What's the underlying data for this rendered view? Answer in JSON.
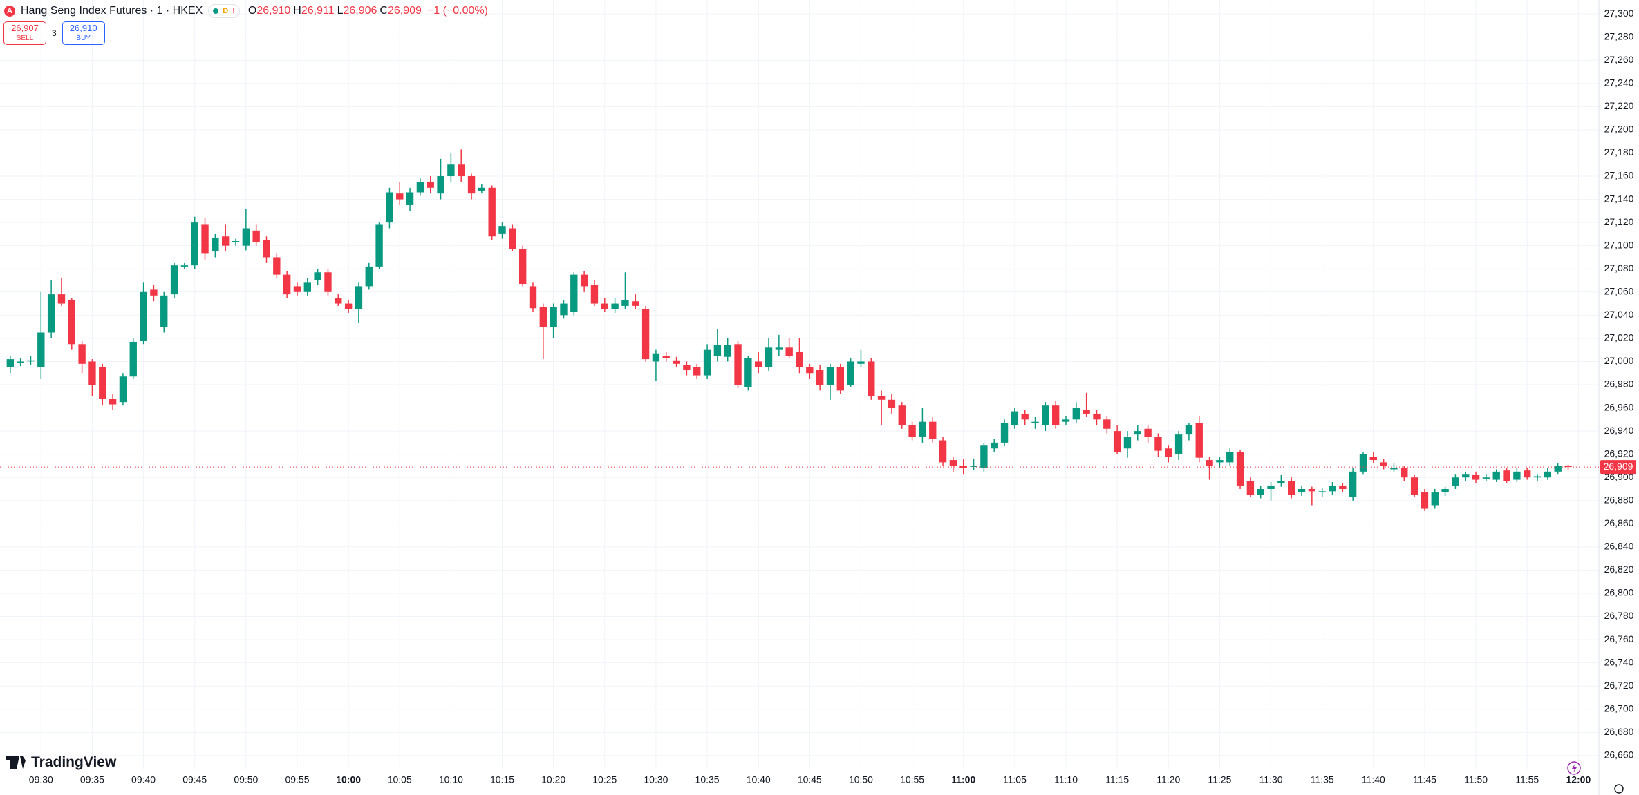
{
  "header": {
    "symbol": "Hang Seng Index Futures · 1 · HKEX",
    "badge_d": "D",
    "badge_alert": "!",
    "ohlc": [
      {
        "label": "O",
        "value": "26,910"
      },
      {
        "label": "H",
        "value": "26,911"
      },
      {
        "label": "L",
        "value": "26,906"
      },
      {
        "label": "C",
        "value": "26,909"
      }
    ],
    "change": "−1 (−0.00%)"
  },
  "trade": {
    "sell_price": "26,907",
    "sell": "SELL",
    "spread": "3",
    "buy_price": "26,910",
    "buy": "BUY"
  },
  "logo": "TradingView",
  "chart_data": {
    "type": "candlestick",
    "x": [
      "09:27",
      "09:28",
      "09:29",
      "09:30",
      "09:31",
      "09:32",
      "09:33",
      "09:34",
      "09:35",
      "09:36",
      "09:37",
      "09:38",
      "09:39",
      "09:40",
      "09:41",
      "09:42",
      "09:43",
      "09:44",
      "09:45",
      "09:46",
      "09:47",
      "09:48",
      "09:49",
      "09:50",
      "09:51",
      "09:52",
      "09:53",
      "09:54",
      "09:55",
      "09:56",
      "09:57",
      "09:58",
      "09:59",
      "10:00",
      "10:01",
      "10:02",
      "10:03",
      "10:04",
      "10:05",
      "10:06",
      "10:07",
      "10:08",
      "10:09",
      "10:10",
      "10:11",
      "10:12",
      "10:13",
      "10:14",
      "10:15",
      "10:16",
      "10:17",
      "10:18",
      "10:19",
      "10:20",
      "10:21",
      "10:22",
      "10:23",
      "10:24",
      "10:25",
      "10:26",
      "10:27",
      "10:28",
      "10:29",
      "10:30",
      "10:31",
      "10:32",
      "10:33",
      "10:34",
      "10:35",
      "10:36",
      "10:37",
      "10:38",
      "10:39",
      "10:40",
      "10:41",
      "10:42",
      "10:43",
      "10:44",
      "10:45",
      "10:46",
      "10:47",
      "10:48",
      "10:49",
      "10:50",
      "10:51",
      "10:52",
      "10:53",
      "10:54",
      "10:55",
      "10:56",
      "10:57",
      "10:58",
      "10:59",
      "11:00",
      "11:01",
      "11:02",
      "11:03",
      "11:04",
      "11:05",
      "11:06",
      "11:07",
      "11:08",
      "11:09",
      "11:10",
      "11:11",
      "11:12",
      "11:13",
      "11:14",
      "11:15",
      "11:16",
      "11:17",
      "11:18",
      "11:19",
      "11:20",
      "11:21",
      "11:22",
      "11:23",
      "11:24",
      "11:25",
      "11:26",
      "11:27",
      "11:28",
      "11:29",
      "11:30",
      "11:31",
      "11:32",
      "11:33",
      "11:34",
      "11:35",
      "11:36",
      "11:37",
      "11:38",
      "11:39",
      "11:40",
      "11:41",
      "11:42",
      "11:43",
      "11:44",
      "11:45",
      "11:46",
      "11:47",
      "11:48",
      "11:49",
      "11:50",
      "11:51",
      "11:52",
      "11:53",
      "11:54",
      "11:55",
      "11:56",
      "11:57",
      "11:58",
      "11:59"
    ],
    "open": [
      26995,
      27000,
      27001,
      26995,
      27025,
      27058,
      27053,
      27015,
      27000,
      26995,
      26968,
      26965,
      26987,
      27018,
      27062,
      27030,
      27058,
      27082,
      27083,
      27118,
      27095,
      27108,
      27103,
      27100,
      27113,
      27105,
      27090,
      27075,
      27065,
      27060,
      27070,
      27077,
      27055,
      27050,
      27045,
      27065,
      27082,
      27120,
      27145,
      27135,
      27146,
      27155,
      27145,
      27160,
      27170,
      27160,
      27147,
      27150,
      27110,
      27115,
      27097,
      27065,
      27047,
      27030,
      27040,
      27043,
      27075,
      27066,
      27050,
      27045,
      27048,
      27052,
      27045,
      27000,
      27005,
      27001,
      26997,
      26995,
      26988,
      27005,
      27004,
      27015,
      26978,
      27000,
      26995,
      27010,
      27012,
      27008,
      26995,
      26993,
      26980,
      26995,
      26980,
      26998,
      27000,
      26970,
      26967,
      26962,
      26945,
      26935,
      26948,
      26932,
      26915,
      26910,
      26910,
      26908,
      26925,
      26930,
      26945,
      26955,
      26948,
      26945,
      26962,
      26948,
      26950,
      26958,
      26955,
      26950,
      26940,
      26925,
      26937,
      26942,
      26935,
      26925,
      26920,
      26937,
      26947,
      26915,
      26913,
      26913,
      26922,
      26897,
      26885,
      26890,
      26895,
      26897,
      26887,
      26890,
      26887,
      26888,
      26893,
      26883,
      26905,
      26918,
      26913,
      26907,
      26908,
      26900,
      26887,
      26876,
      26887,
      26893,
      26900,
      26902,
      26899,
      26898,
      26906,
      26898,
      26906,
      26900,
      26900,
      26905,
      26910
    ],
    "high": [
      27005,
      27003,
      27005,
      27060,
      27070,
      27072,
      27055,
      27018,
      27002,
      26998,
      26972,
      26990,
      27020,
      27068,
      27066,
      27060,
      27085,
      27085,
      27125,
      27124,
      27110,
      27118,
      27106,
      27132,
      27118,
      27108,
      27093,
      27078,
      27068,
      27072,
      27080,
      27080,
      27058,
      27053,
      27068,
      27085,
      27120,
      27150,
      27155,
      27150,
      27158,
      27160,
      27175,
      27180,
      27183,
      27162,
      27153,
      27152,
      27120,
      27118,
      27100,
      27068,
      27050,
      27050,
      27053,
      27077,
      27078,
      27070,
      27055,
      27055,
      27077,
      27058,
      27048,
      27010,
      27008,
      27004,
      27000,
      26998,
      27015,
      27028,
      27020,
      27018,
      27005,
      27008,
      27020,
      27023,
      27020,
      27020,
      26998,
      26997,
      26998,
      26998,
      27003,
      27010,
      27003,
      26975,
      26972,
      26965,
      26948,
      26960,
      26952,
      26935,
      26918,
      26916,
      26916,
      26930,
      26933,
      26950,
      26960,
      26958,
      26952,
      26965,
      26966,
      26953,
      26965,
      26973,
      26958,
      26953,
      26945,
      26940,
      26945,
      26945,
      26938,
      26928,
      26940,
      26947,
      26953,
      26918,
      26918,
      26925,
      26924,
      26900,
      26893,
      26896,
      26902,
      26900,
      26893,
      26892,
      26891,
      26896,
      26895,
      26908,
      26922,
      26922,
      26916,
      26912,
      26910,
      26902,
      26890,
      26890,
      26892,
      26903,
      26905,
      26905,
      26903,
      26907,
      26908,
      26908,
      26908,
      26903,
      26908,
      26912,
      26911
    ],
    "low": [
      26990,
      26996,
      26997,
      26985,
      27020,
      27048,
      27010,
      26990,
      26970,
      26962,
      26958,
      26962,
      26985,
      27015,
      27052,
      27025,
      27055,
      27080,
      27080,
      27088,
      27090,
      27095,
      27100,
      27096,
      27100,
      27085,
      27072,
      27055,
      27057,
      27057,
      27066,
      27057,
      27048,
      27042,
      27033,
      27062,
      27080,
      27115,
      27135,
      27130,
      27143,
      27145,
      27140,
      27155,
      27155,
      27140,
      27145,
      27105,
      27106,
      27095,
      27065,
      27043,
      27002,
      27020,
      27037,
      27040,
      27060,
      27048,
      27043,
      27042,
      27045,
      27045,
      27000,
      26983,
      27000,
      26995,
      26988,
      26985,
      26985,
      27000,
      27000,
      26977,
      26975,
      26990,
      26992,
      27005,
      27003,
      26990,
      26985,
      26975,
      26967,
      26972,
      26978,
      26995,
      26967,
      26945,
      26955,
      26942,
      26932,
      26930,
      26930,
      26910,
      26905,
      26903,
      26906,
      26905,
      26922,
      26927,
      26942,
      26945,
      26942,
      26940,
      26942,
      26945,
      26947,
      26952,
      26945,
      26938,
      26920,
      26917,
      26932,
      26930,
      26918,
      26913,
      26915,
      26932,
      26913,
      26898,
      26908,
      26910,
      26890,
      26883,
      26882,
      26880,
      26892,
      26882,
      26884,
      26876,
      26883,
      26885,
      26887,
      26880,
      26903,
      26912,
      26907,
      26905,
      26897,
      26883,
      26871,
      26873,
      26884,
      26890,
      26897,
      26895,
      26897,
      26896,
      26895,
      26896,
      26898,
      26897,
      26898,
      26903,
      26906
    ],
    "close": [
      27002,
      27000,
      27001,
      27025,
      27058,
      27050,
      27015,
      26998,
      26980,
      26968,
      26963,
      26987,
      27017,
      27060,
      27057,
      27057,
      27083,
      27083,
      27120,
      27093,
      27107,
      27100,
      27104,
      27115,
      27103,
      27090,
      27075,
      27058,
      27060,
      27068,
      27077,
      27060,
      27050,
      27045,
      27065,
      27082,
      27118,
      27146,
      27140,
      27146,
      27155,
      27150,
      27160,
      27170,
      27160,
      27145,
      27150,
      27108,
      27117,
      27097,
      27067,
      27046,
      27030,
      27047,
      27050,
      27075,
      27065,
      27050,
      27045,
      27050,
      27053,
      27048,
      27002,
      27007,
      27003,
      26998,
      26993,
      26988,
      27010,
      27014,
      27014,
      26980,
      27003,
      26995,
      27012,
      27012,
      27005,
      26995,
      26990,
      26980,
      26995,
      26975,
      27000,
      27000,
      26970,
      26967,
      26960,
      26945,
      26935,
      26948,
      26933,
      26913,
      26910,
      26908,
      26910,
      26928,
      26930,
      26947,
      26957,
      26950,
      26948,
      26962,
      26945,
      26950,
      26960,
      26955,
      26950,
      26942,
      26922,
      26935,
      26940,
      26935,
      26923,
      26918,
      26937,
      26945,
      26917,
      26910,
      26915,
      26922,
      26893,
      26885,
      26890,
      26893,
      26897,
      26885,
      26890,
      26888,
      26888,
      26893,
      26890,
      26905,
      26920,
      26915,
      26910,
      26908,
      26900,
      26885,
      26873,
      26887,
      26890,
      26900,
      26903,
      26898,
      26900,
      26905,
      26897,
      26905,
      26900,
      26901,
      26905,
      26910,
      26909
    ],
    "up_color": "#089981",
    "down_color": "#f23645",
    "xlim": [
      "09:26",
      "12:02"
    ],
    "xticks": [
      "09:30",
      "09:35",
      "09:40",
      "09:45",
      "09:50",
      "09:55",
      "10:00",
      "10:05",
      "10:10",
      "10:15",
      "10:20",
      "10:25",
      "10:30",
      "10:35",
      "10:40",
      "10:45",
      "10:50",
      "10:55",
      "11:00",
      "11:05",
      "11:10",
      "11:15",
      "11:20",
      "11:25",
      "11:30",
      "11:35",
      "11:40",
      "11:45",
      "11:50",
      "11:55",
      "12:00"
    ],
    "ylim": [
      26648,
      27312
    ],
    "yticks": [
      {
        "value": 26660,
        "label": "26,660"
      },
      {
        "value": 26680,
        "label": "26,680"
      },
      {
        "value": 26700,
        "label": "26,700"
      },
      {
        "value": 26720,
        "label": "26,720"
      },
      {
        "value": 26740,
        "label": "26,740"
      },
      {
        "value": 26760,
        "label": "26,760"
      },
      {
        "value": 26780,
        "label": "26,780"
      },
      {
        "value": 26800,
        "label": "26,800"
      },
      {
        "value": 26820,
        "label": "26,820"
      },
      {
        "value": 26840,
        "label": "26,840"
      },
      {
        "value": 26860,
        "label": "26,860"
      },
      {
        "value": 26880,
        "label": "26,880"
      },
      {
        "value": 26900,
        "label": "26,900"
      },
      {
        "value": 26920,
        "label": "26,920"
      },
      {
        "value": 26940,
        "label": "26,940"
      },
      {
        "value": 26960,
        "label": "26,960"
      },
      {
        "value": 26980,
        "label": "26,980"
      },
      {
        "value": 27000,
        "label": "27,000"
      },
      {
        "value": 27020,
        "label": "27,020"
      },
      {
        "value": 27040,
        "label": "27,040"
      },
      {
        "value": 27060,
        "label": "27,060"
      },
      {
        "value": 27080,
        "label": "27,080"
      },
      {
        "value": 27100,
        "label": "27,100"
      },
      {
        "value": 27120,
        "label": "27,120"
      },
      {
        "value": 27140,
        "label": "27,140"
      },
      {
        "value": 27160,
        "label": "27,160"
      },
      {
        "value": 27180,
        "label": "27,180"
      },
      {
        "value": 27200,
        "label": "27,200"
      },
      {
        "value": 27220,
        "label": "27,220"
      },
      {
        "value": 27240,
        "label": "27,240"
      },
      {
        "value": 27260,
        "label": "27,260"
      },
      {
        "value": 27280,
        "label": "27,280"
      },
      {
        "value": 27300,
        "label": "27,300"
      }
    ],
    "grid": true,
    "last_price": {
      "value": 26909,
      "label": "26,909"
    }
  }
}
